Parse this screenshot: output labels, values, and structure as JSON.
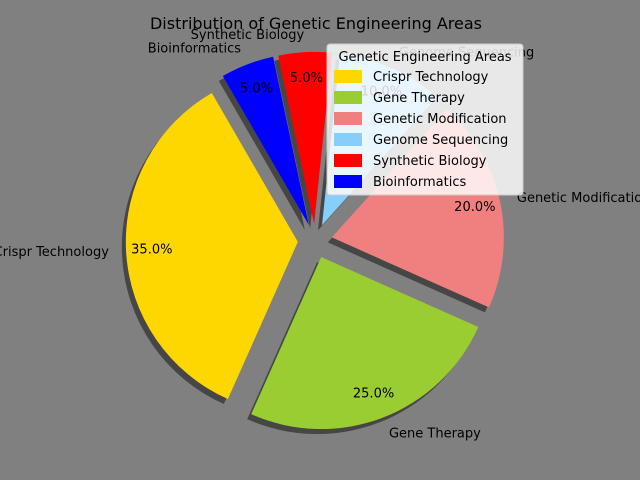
{
  "chart_data": {
    "type": "pie",
    "title": "Distribution of Genetic Engineering Areas",
    "slices": [
      {
        "label": "Crispr Technology",
        "value": 35.0,
        "pct_label": "35.0%",
        "color": "#FFD700"
      },
      {
        "label": "Gene Therapy",
        "value": 25.0,
        "pct_label": "25.0%",
        "color": "#9ACD32"
      },
      {
        "label": "Genetic Modification",
        "value": 20.0,
        "pct_label": "20.0%",
        "color": "#F08080"
      },
      {
        "label": "Genome Sequencing",
        "value": 10.0,
        "pct_label": "10.0%",
        "color": "#87CEFA"
      },
      {
        "label": "Synthetic Biology",
        "value": 5.0,
        "pct_label": "5.0%",
        "color": "#FF0000"
      },
      {
        "label": "Bioinformatics",
        "value": 5.0,
        "pct_label": "5.0%",
        "color": "#0000FF"
      }
    ],
    "legend": {
      "title": "Genetic Engineering Areas",
      "placement": "top-right"
    },
    "start_angle_deg": 120,
    "shadow": true,
    "exploded": true
  }
}
